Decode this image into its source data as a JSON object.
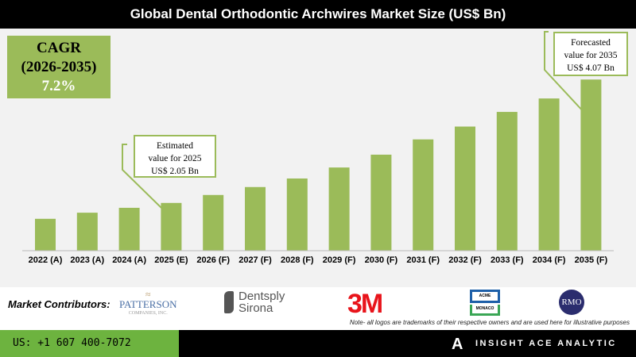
{
  "chart_data": {
    "type": "bar",
    "title": "Global Dental Orthodontic Archwires Market Size (US$ Bn)",
    "categories": [
      "2022 (A)",
      "2023 (A)",
      "2024 (A)",
      "2025 (E)",
      "2026 (F)",
      "2027 (F)",
      "2028 (F)",
      "2029 (F)",
      "2030 (F)",
      "2031 (F)",
      "2032 (F)",
      "2033 (F)",
      "2034 (F)",
      "2035 (F)"
    ],
    "values": [
      1.79,
      1.89,
      1.97,
      2.05,
      2.18,
      2.31,
      2.45,
      2.63,
      2.84,
      3.09,
      3.3,
      3.54,
      3.76,
      4.07
    ],
    "bar_color": "#9bbb59",
    "grid": false,
    "xlabel": "",
    "ylabel": ""
  },
  "cagr": {
    "label": "CAGR",
    "period": "(2026-2035)",
    "value": "7.2%"
  },
  "callouts": {
    "estimated": [
      "Estimated",
      "value for 2025",
      "US$ 2.05 Bn"
    ],
    "forecasted": [
      "Forecasted",
      "value for 2035",
      "US$ 4.07 Bn"
    ]
  },
  "contributors": {
    "label": "Market Contributors:",
    "logos": [
      "PATTERSON",
      "COMPANIES, INC.",
      "Dentsply",
      "Sirona",
      "3M",
      "ACME",
      "MONACO",
      "RMO"
    ],
    "note": "Note- all logos are trademarks of their respective owners and are used here for illustrative purposes"
  },
  "footer": {
    "phone": "US: +1 607 400-7072",
    "brand": "INSIGHT ACE ANALYTIC"
  }
}
